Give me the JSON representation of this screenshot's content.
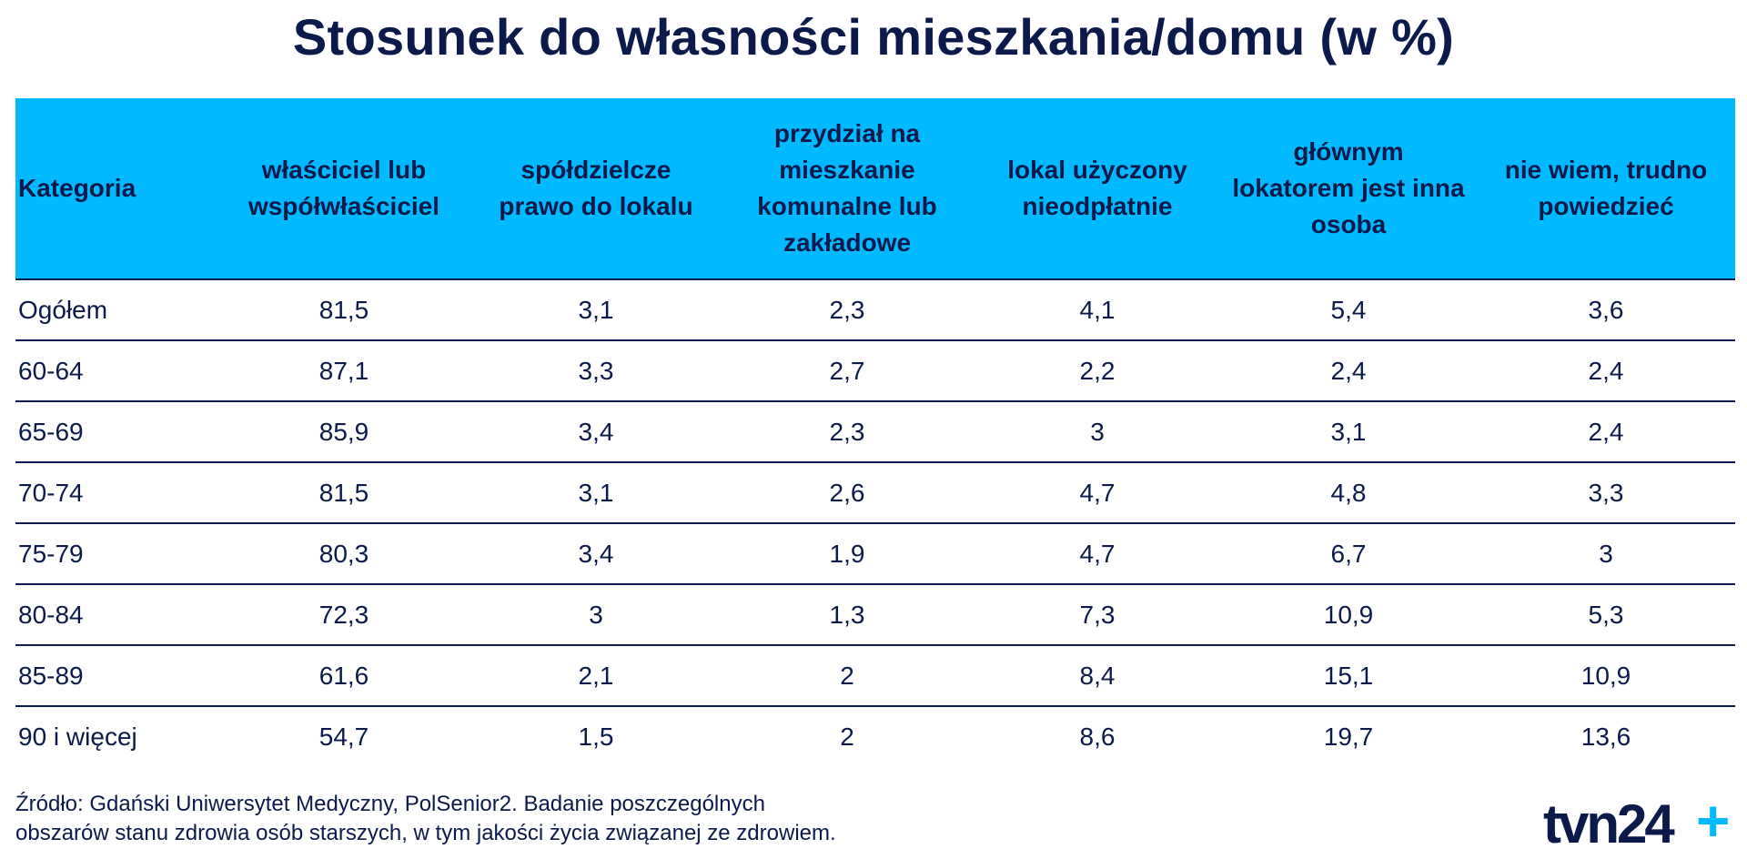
{
  "title": "Stosunek do własności mieszkania/domu (w %)",
  "chart_data": {
    "type": "table",
    "title": "Stosunek do własności mieszkania/domu (w %)",
    "columns": [
      "Kategoria",
      "właściciel lub współwłaściciel",
      "spółdzielcze prawo do lokalu",
      "przydział na mieszkanie komunalne lub zakładowe",
      "lokal użyczony nieodpłatnie",
      "głównym lokatorem jest inna osoba",
      "nie wiem, trudno powiedzieć"
    ],
    "rows": [
      [
        "Ogółem",
        "81,5",
        "3,1",
        "2,3",
        "4,1",
        "5,4",
        "3,6"
      ],
      [
        "60-64",
        "87,1",
        "3,3",
        "2,7",
        "2,2",
        "2,4",
        "2,4"
      ],
      [
        "65-69",
        "85,9",
        "3,4",
        "2,3",
        "3",
        "3,1",
        "2,4"
      ],
      [
        "70-74",
        "81,5",
        "3,1",
        "2,6",
        "4,7",
        "4,8",
        "3,3"
      ],
      [
        "75-79",
        "80,3",
        "3,4",
        "1,9",
        "4,7",
        "6,7",
        "3"
      ],
      [
        "80-84",
        "72,3",
        "3",
        "1,3",
        "7,3",
        "10,9",
        "5,3"
      ],
      [
        "85-89",
        "61,6",
        "2,1",
        "2",
        "8,4",
        "15,1",
        "10,9"
      ],
      [
        "90 i więcej",
        "54,7",
        "1,5",
        "2",
        "8,6",
        "19,7",
        "13,6"
      ]
    ]
  },
  "source_lines": [
    "Źródło: Gdański Uniwersytet Medyczny, PolSenior2. Badanie poszczególnych",
    "obszarów stanu zdrowia osób starszych, w tym jakości życia związanej ze zdrowiem."
  ],
  "logo": {
    "text": "tvn24",
    "plus": "+",
    "color_text": "#0c1a4b",
    "color_plus": "#00b9ff"
  },
  "colors": {
    "header_bg": "#00b9ff",
    "text": "#0c1a4b",
    "rule": "#0c1a4b"
  }
}
